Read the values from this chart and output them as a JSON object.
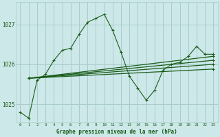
{
  "bg_color": "#cce8e8",
  "grid_color": "#aacccc",
  "line_color": "#1a5c1a",
  "title": "Graphe pression niveau de la mer (hPa)",
  "yticks": [
    1025,
    1026,
    1027
  ],
  "ylim": [
    1024.55,
    1027.55
  ],
  "xlim": [
    -0.5,
    23.5
  ],
  "figsize": [
    3.2,
    2.0
  ],
  "dpi": 100,
  "main_line": [
    1024.8,
    1024.65,
    1025.6,
    1025.75,
    1026.1,
    1026.35,
    1026.4,
    1026.75,
    1027.05,
    1027.15,
    1027.25,
    1026.85,
    1026.3,
    1025.7,
    1025.4,
    1025.1,
    1025.35,
    1025.85,
    1026.0,
    1026.05,
    1026.2,
    1026.45,
    1026.25,
    1026.25
  ],
  "straight_lines": [
    [
      [
        1,
        23
      ],
      [
        1025.65,
        1026.2
      ]
    ],
    [
      [
        1,
        23
      ],
      [
        1025.65,
        1026.1
      ]
    ],
    [
      [
        1,
        23
      ],
      [
        1025.65,
        1026.0
      ]
    ],
    [
      [
        1,
        23
      ],
      [
        1025.65,
        1025.88
      ]
    ]
  ],
  "straight_markers": [
    [
      [
        1,
        23
      ],
      [
        1025.65,
        1026.2
      ]
    ],
    [
      [
        1,
        23
      ],
      [
        1025.65,
        1026.1
      ]
    ],
    [
      [
        1,
        23
      ],
      [
        1025.65,
        1026.0
      ]
    ],
    [
      [
        1,
        23
      ],
      [
        1025.65,
        1025.88
      ]
    ]
  ]
}
